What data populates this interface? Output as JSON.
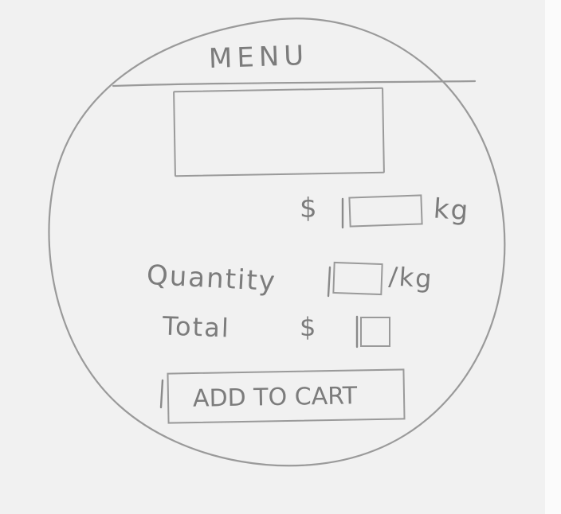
{
  "menu": {
    "title": "MENU"
  },
  "product": {
    "image_placeholder": "",
    "price": {
      "currency": "$",
      "value": "",
      "unit": "kg"
    }
  },
  "quantity": {
    "label": "Quantity",
    "value": "",
    "unit": "/kg"
  },
  "total": {
    "label": "Total",
    "currency": "$",
    "value": ""
  },
  "actions": {
    "add_to_cart_label": "ADD TO CART"
  },
  "colors": {
    "paper": "#f1f1f1",
    "pencil": "#9a9a9a"
  }
}
